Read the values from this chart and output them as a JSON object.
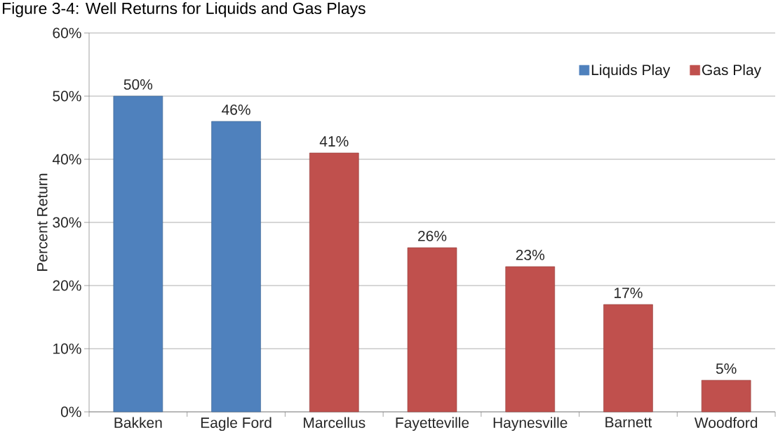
{
  "chart_data": {
    "type": "bar",
    "title": "Figure 3-4: Well Returns for Liquids and Gas Plays",
    "ylabel": "Percent Return",
    "categories": [
      "Bakken",
      "Eagle Ford",
      "Marcellus",
      "Fayetteville",
      "Haynesville",
      "Barnett",
      "Woodford"
    ],
    "series": [
      {
        "name": "Liquids Play",
        "color": "#4f81bd",
        "values": [
          50,
          46,
          null,
          null,
          null,
          null,
          null
        ],
        "value_labels": [
          "50%",
          "46%",
          null,
          null,
          null,
          null,
          null
        ]
      },
      {
        "name": "Gas Play",
        "color": "#c0504d",
        "values": [
          null,
          null,
          41,
          26,
          23,
          17,
          5
        ],
        "value_labels": [
          null,
          null,
          "41%",
          "26%",
          "23%",
          "17%",
          "5%"
        ]
      }
    ],
    "ylim": [
      0,
      60
    ],
    "yticks": [
      {
        "value": 0,
        "label": "0%"
      },
      {
        "value": 10,
        "label": "10%"
      },
      {
        "value": 20,
        "label": "20%"
      },
      {
        "value": 30,
        "label": "30%"
      },
      {
        "value": 40,
        "label": "40%"
      },
      {
        "value": 50,
        "label": "50%"
      },
      {
        "value": 60,
        "label": "60%"
      }
    ],
    "grid": "y",
    "legend": "top right"
  }
}
